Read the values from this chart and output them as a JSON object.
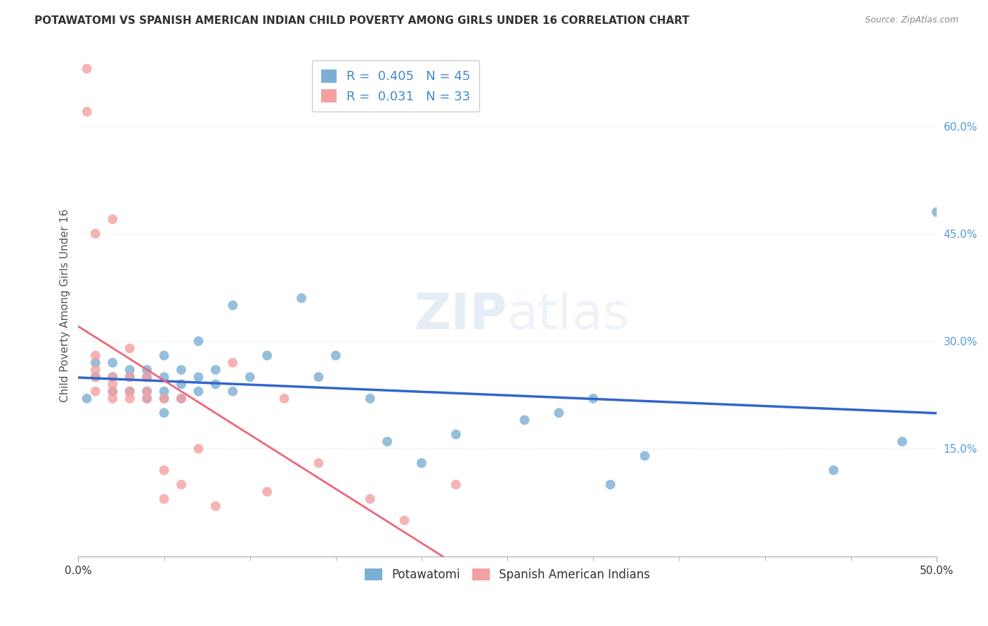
{
  "title": "POTAWATOMI VS SPANISH AMERICAN INDIAN CHILD POVERTY AMONG GIRLS UNDER 16 CORRELATION CHART",
  "source": "Source: ZipAtlas.com",
  "ylabel": "Child Poverty Among Girls Under 16",
  "xlim": [
    0,
    0.5
  ],
  "ylim": [
    0,
    0.7
  ],
  "xticklabels_ends": [
    "0.0%",
    "50.0%"
  ],
  "xtickvals_ends": [
    0.0,
    0.5
  ],
  "xtick_minor_vals": [
    0.05,
    0.1,
    0.15,
    0.2,
    0.25,
    0.3,
    0.35,
    0.4,
    0.45
  ],
  "yticklabels_right": [
    "15.0%",
    "30.0%",
    "45.0%",
    "60.0%"
  ],
  "ytickvals_right": [
    0.15,
    0.3,
    0.45,
    0.6
  ],
  "blue_R": 0.405,
  "blue_N": 45,
  "pink_R": 0.031,
  "pink_N": 33,
  "blue_color": "#7BAFD4",
  "pink_color": "#F4A0A0",
  "blue_line_color": "#3366CC",
  "pink_line_color": "#EE6677",
  "pink_dash_color": "#EE8899",
  "legend_label_blue": "Potawatomi",
  "legend_label_pink": "Spanish American Indians",
  "blue_scatter_x": [
    0.005,
    0.01,
    0.01,
    0.02,
    0.02,
    0.02,
    0.03,
    0.03,
    0.03,
    0.04,
    0.04,
    0.04,
    0.04,
    0.05,
    0.05,
    0.05,
    0.05,
    0.05,
    0.06,
    0.06,
    0.06,
    0.07,
    0.07,
    0.07,
    0.08,
    0.08,
    0.09,
    0.09,
    0.1,
    0.11,
    0.13,
    0.14,
    0.15,
    0.17,
    0.18,
    0.2,
    0.22,
    0.26,
    0.28,
    0.3,
    0.31,
    0.33,
    0.44,
    0.48,
    0.5
  ],
  "blue_scatter_y": [
    0.22,
    0.25,
    0.27,
    0.23,
    0.25,
    0.27,
    0.23,
    0.25,
    0.26,
    0.22,
    0.23,
    0.25,
    0.26,
    0.2,
    0.22,
    0.23,
    0.25,
    0.28,
    0.22,
    0.24,
    0.26,
    0.23,
    0.25,
    0.3,
    0.24,
    0.26,
    0.23,
    0.35,
    0.25,
    0.28,
    0.36,
    0.25,
    0.28,
    0.22,
    0.16,
    0.13,
    0.17,
    0.19,
    0.2,
    0.22,
    0.1,
    0.14,
    0.12,
    0.16,
    0.48
  ],
  "pink_scatter_x": [
    0.005,
    0.005,
    0.01,
    0.01,
    0.01,
    0.01,
    0.01,
    0.02,
    0.02,
    0.02,
    0.02,
    0.02,
    0.03,
    0.03,
    0.03,
    0.03,
    0.04,
    0.04,
    0.04,
    0.05,
    0.05,
    0.05,
    0.06,
    0.06,
    0.07,
    0.08,
    0.09,
    0.11,
    0.12,
    0.14,
    0.17,
    0.19,
    0.22
  ],
  "pink_scatter_y": [
    0.62,
    0.68,
    0.23,
    0.25,
    0.26,
    0.28,
    0.45,
    0.22,
    0.23,
    0.24,
    0.25,
    0.47,
    0.22,
    0.23,
    0.25,
    0.29,
    0.22,
    0.23,
    0.25,
    0.08,
    0.12,
    0.22,
    0.1,
    0.22,
    0.15,
    0.07,
    0.27,
    0.09,
    0.22,
    0.13,
    0.08,
    0.05,
    0.1
  ],
  "background_color": "#FFFFFF",
  "grid_color": "#DDDDDD"
}
